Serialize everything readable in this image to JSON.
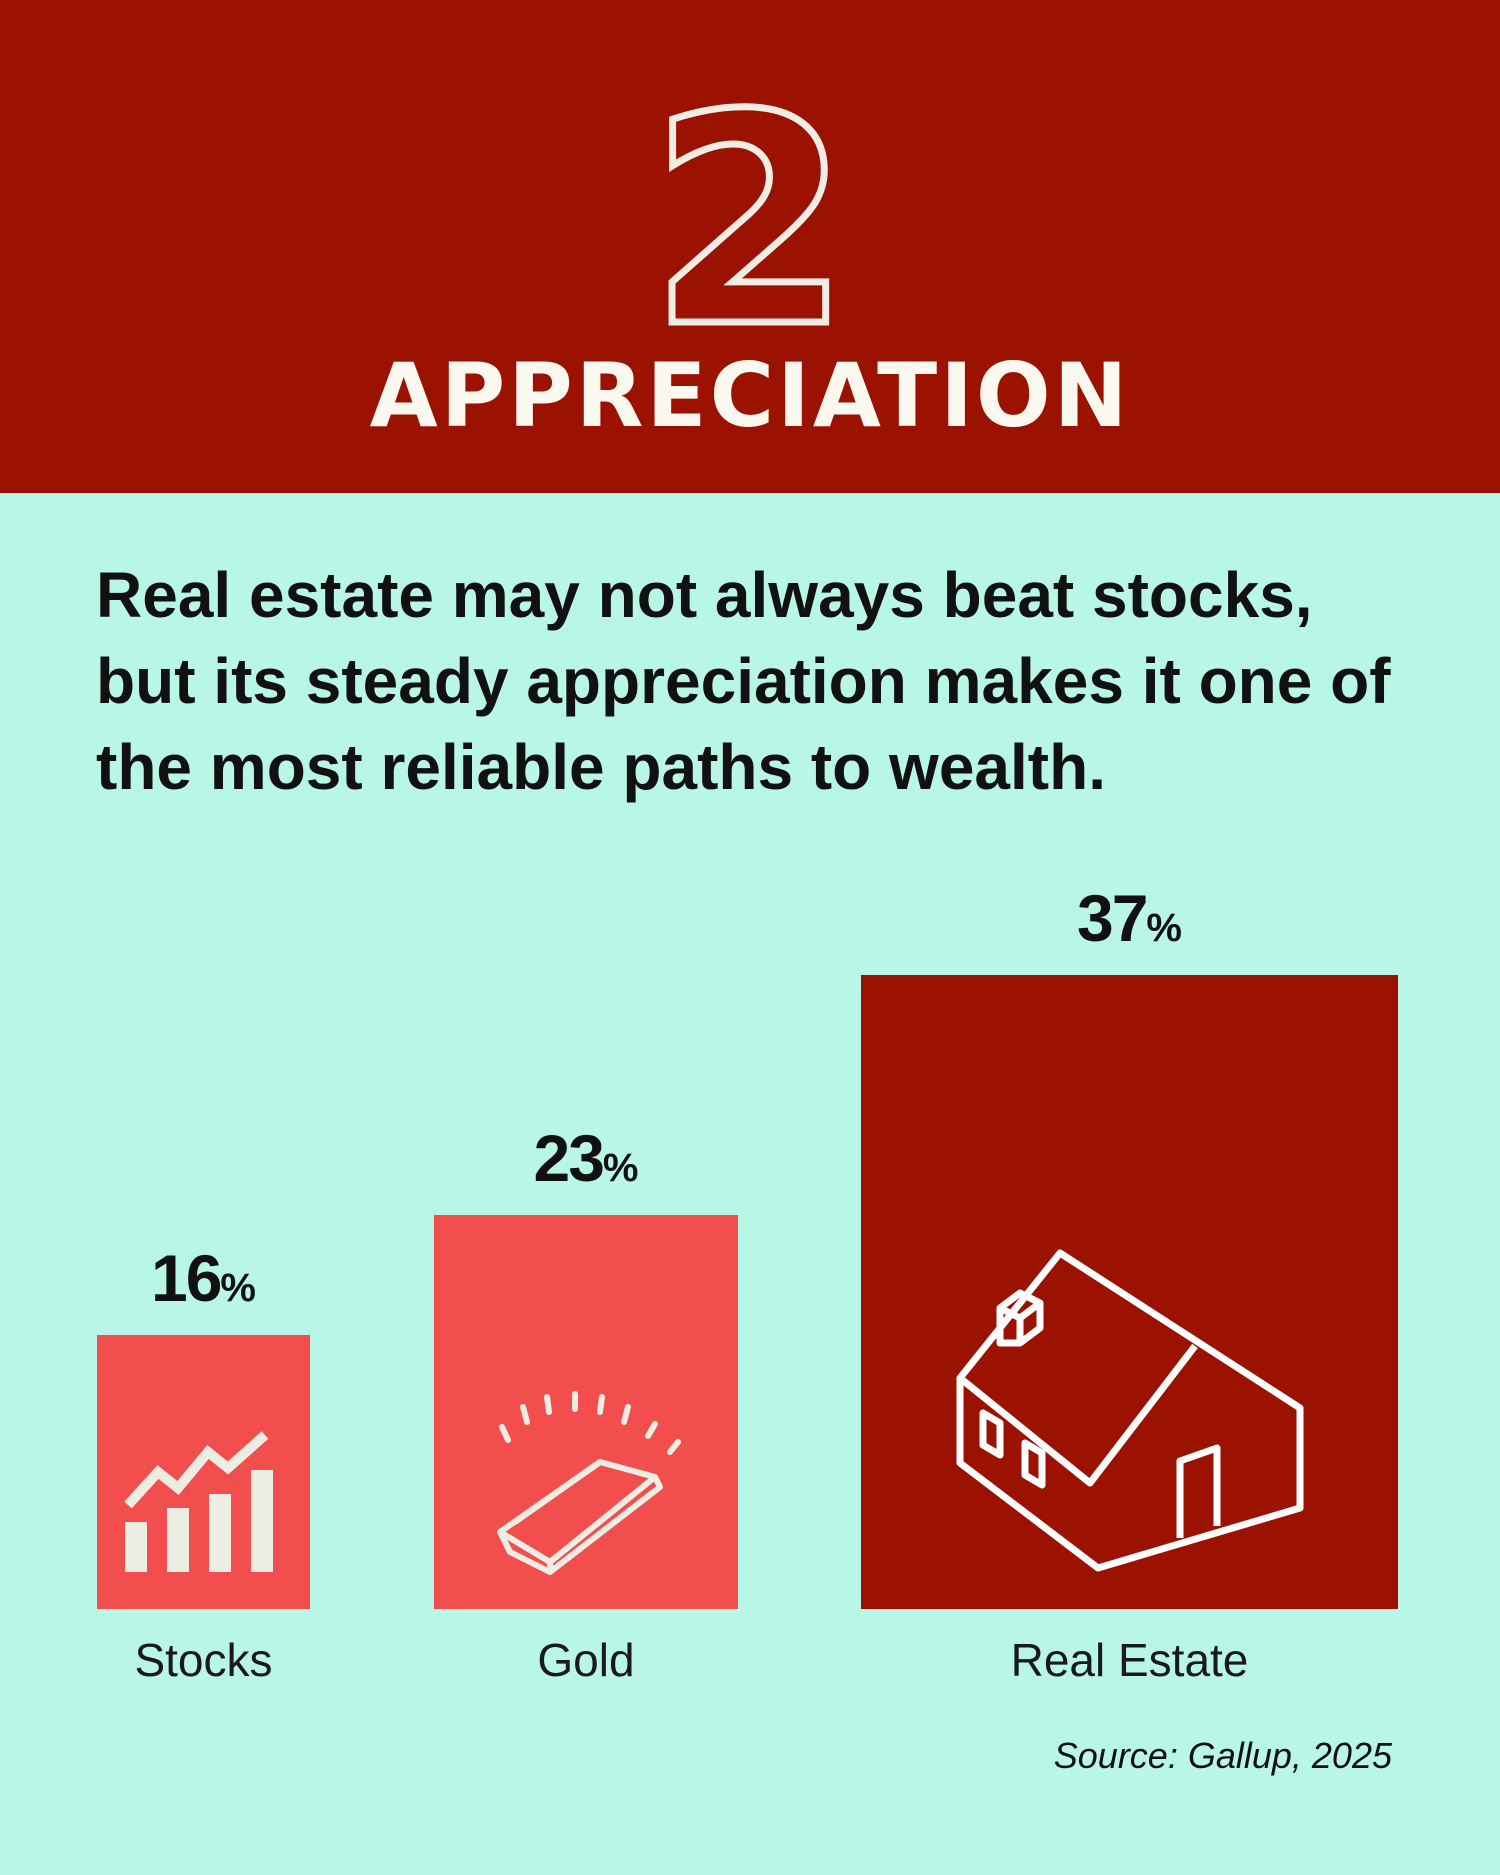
{
  "header": {
    "number": "2",
    "title": "APPRECIATION"
  },
  "lead": "Real estate may not always beat stocks, but its steady appreciation makes it one of the most reliable paths to wealth.",
  "colors": {
    "header_bg": "#9B1200",
    "page_bg": "#B8F7E8",
    "bar_light": "#F24E4E",
    "bar_dark": "#9B1200"
  },
  "chart_data": {
    "type": "bar",
    "categories": [
      "Stocks",
      "Gold",
      "Real Estate"
    ],
    "values": [
      16,
      23,
      37
    ],
    "value_labels": [
      "16",
      "23",
      "37"
    ],
    "unit": "%",
    "bar_colors": [
      "#F24E4E",
      "#F24E4E",
      "#9B1200"
    ],
    "icons": [
      "stock-chart-icon",
      "gold-bar-icon",
      "house-icon"
    ],
    "ylim": [
      0,
      37
    ],
    "grid": false
  },
  "source": "Source: Gallup, 2025"
}
